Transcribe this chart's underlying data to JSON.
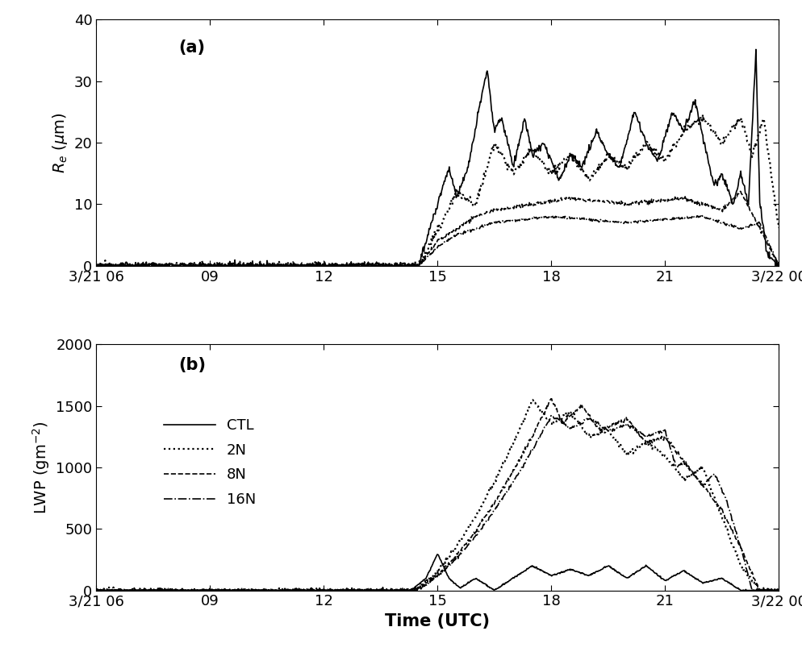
{
  "xlabel": "Time (UTC)",
  "ylabel_a": "R_e (μm)",
  "ylabel_b": "LWP (gm⁻²)",
  "label_a": "(a)",
  "label_b": "(b)",
  "legend_labels": [
    "CTL",
    "2N",
    "8N",
    "16N"
  ],
  "xtick_labels": [
    "3/21 06",
    "09",
    "12",
    "15",
    "18",
    "21",
    "3/22 00"
  ],
  "ylim_a": [
    0,
    40
  ],
  "ylim_b": [
    0,
    2000
  ],
  "yticks_a": [
    0,
    10,
    20,
    30,
    40
  ],
  "yticks_b": [
    0,
    500,
    1000,
    1500,
    2000
  ],
  "background_color": "#ffffff",
  "line_color": "#000000"
}
